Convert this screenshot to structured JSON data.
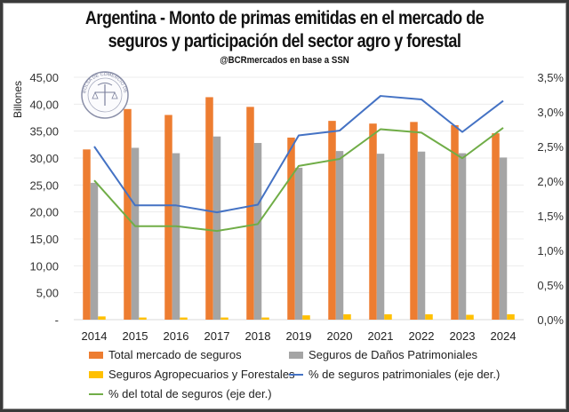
{
  "header": {
    "title_line1": "Argentina - Monto de primas emitidas en el mercado de",
    "title_line2": "seguros y participación del sector agro y forestal",
    "source": "@BCRmercados en base a SSN"
  },
  "logo": {
    "name": "Bolsa de Comercio de Rosario seal",
    "text": "BOLSA DE COMERCIO DE ROSARIO"
  },
  "chart_data": {
    "type": "bar",
    "title": "Argentina - Monto de primas emitidas en el mercado de seguros y participación del sector agro y forestal",
    "subtitle": "@BCRmercados en base a SSN",
    "categories": [
      "2014",
      "2015",
      "2016",
      "2017",
      "2018",
      "2019",
      "2020",
      "2021",
      "2022",
      "2023",
      "2024"
    ],
    "ylabel": "Billones",
    "ylim": [
      0,
      45
    ],
    "y_ticks": [
      "-",
      "5,00",
      "10,00",
      "15,00",
      "20,00",
      "25,00",
      "30,00",
      "35,00",
      "40,00",
      "45,00"
    ],
    "y2lim": [
      0,
      3.5
    ],
    "y2_ticks": [
      "0,0%",
      "0,5%",
      "1,0%",
      "1,5%",
      "2,0%",
      "2,5%",
      "3,0%",
      "3,5%"
    ],
    "grid": true,
    "legend_position": "bottom",
    "series": [
      {
        "name": "Total mercado de seguros",
        "kind": "bar",
        "axis": "left",
        "color": "#ED7D31",
        "values": [
          31.6,
          39.1,
          38.0,
          41.3,
          39.5,
          33.8,
          36.9,
          36.4,
          36.7,
          36.1,
          34.6
        ]
      },
      {
        "name": "Seguros de Daños Patrimoniales",
        "kind": "bar",
        "axis": "left",
        "color": "#A5A5A5",
        "values": [
          25.4,
          31.9,
          30.9,
          34.0,
          32.8,
          28.2,
          31.3,
          30.8,
          31.2,
          30.9,
          30.1
        ]
      },
      {
        "name": "Seguros Agropecuarios y Forestales",
        "kind": "bar",
        "axis": "left",
        "color": "#FFC000",
        "values": [
          0.6,
          0.4,
          0.4,
          0.4,
          0.4,
          0.8,
          1.0,
          1.0,
          1.0,
          0.9,
          1.0
        ]
      },
      {
        "name": "% de seguros patrimoniales (eje der.)",
        "kind": "line",
        "axis": "right",
        "color": "#4472C4",
        "values": [
          2.5,
          1.65,
          1.65,
          1.55,
          1.66,
          2.66,
          2.73,
          3.23,
          3.18,
          2.71,
          3.16
        ]
      },
      {
        "name": "% del total de seguros (eje der.)",
        "kind": "line",
        "axis": "right",
        "color": "#70AD47",
        "values": [
          2.01,
          1.35,
          1.35,
          1.28,
          1.38,
          2.22,
          2.32,
          2.75,
          2.7,
          2.33,
          2.77
        ]
      }
    ]
  }
}
